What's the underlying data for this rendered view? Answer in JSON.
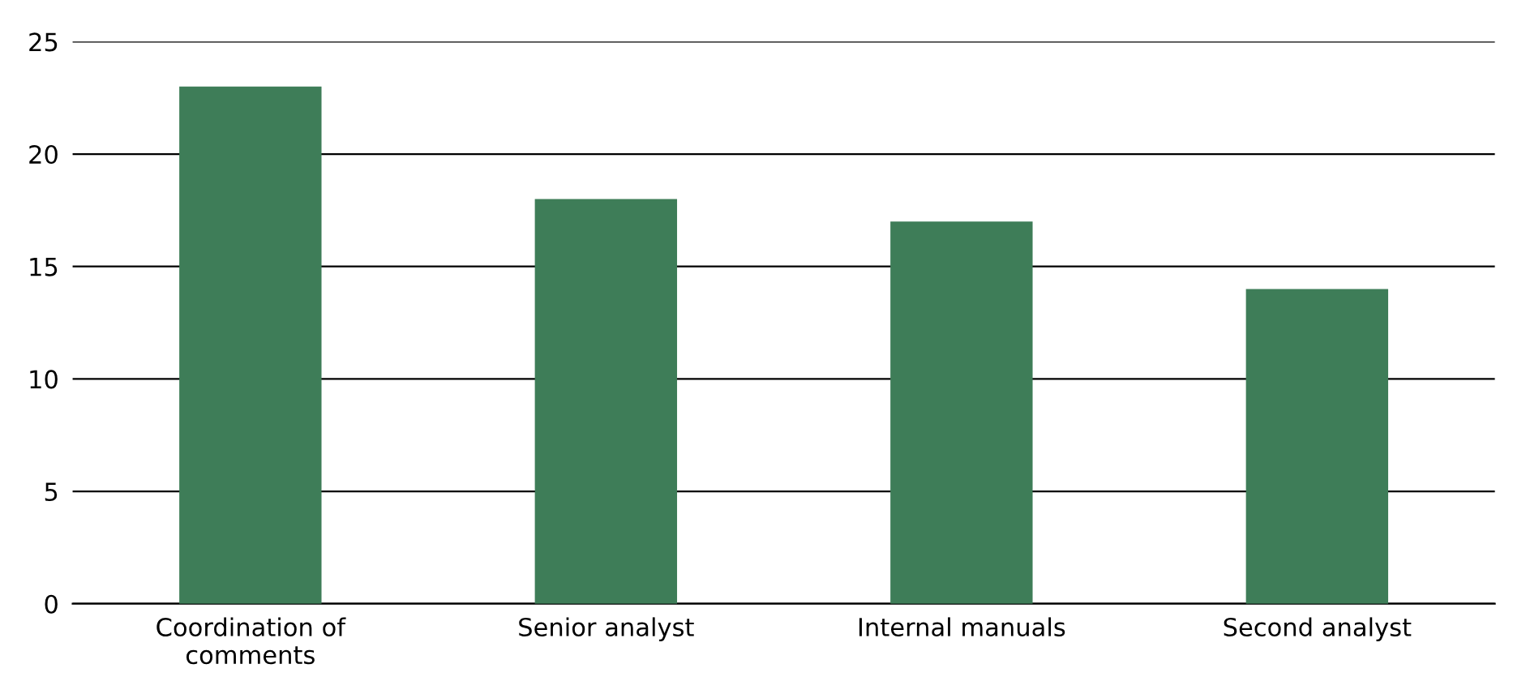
{
  "chart_data": {
    "type": "bar",
    "categories": [
      "Coordination of\ncomments",
      "Senior analyst",
      "Internal manuals",
      "Second analyst"
    ],
    "values": [
      23,
      18,
      17,
      14
    ],
    "color": "#3e7d58",
    "ylim": [
      0,
      25
    ],
    "yticks": [
      0,
      5,
      10,
      15,
      20,
      25
    ],
    "grid": "y"
  }
}
